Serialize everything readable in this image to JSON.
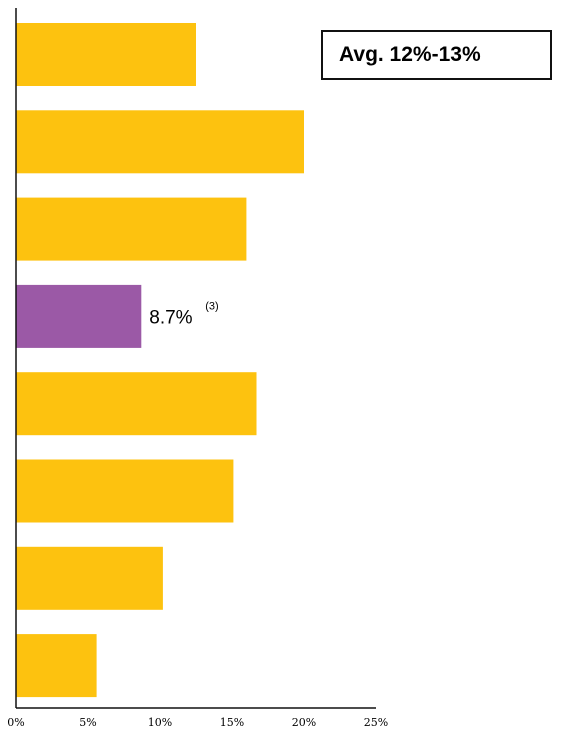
{
  "colors": {
    "bar_default": "#FDC20F",
    "bar_highlight": "#9B59A6",
    "axis": "#111111",
    "text": "#000000"
  },
  "callout": {
    "text": "Avg. 12%-13%"
  },
  "chart_data": {
    "type": "bar",
    "orientation": "horizontal",
    "values": [
      12.5,
      20.0,
      16.0,
      8.7,
      16.7,
      15.1,
      10.2,
      5.6
    ],
    "highlight_index": 3,
    "data_labels": [
      {
        "index": 3,
        "value": "8.7%",
        "footnote": "(3)"
      }
    ],
    "xlim": [
      0,
      25
    ],
    "xticks": [
      0,
      5,
      10,
      15,
      20,
      25
    ],
    "xtick_labels": [
      "0%",
      "5%",
      "10%",
      "15%",
      "20%",
      "25%"
    ],
    "grid": false,
    "title": "",
    "xlabel": "",
    "ylabel": ""
  }
}
